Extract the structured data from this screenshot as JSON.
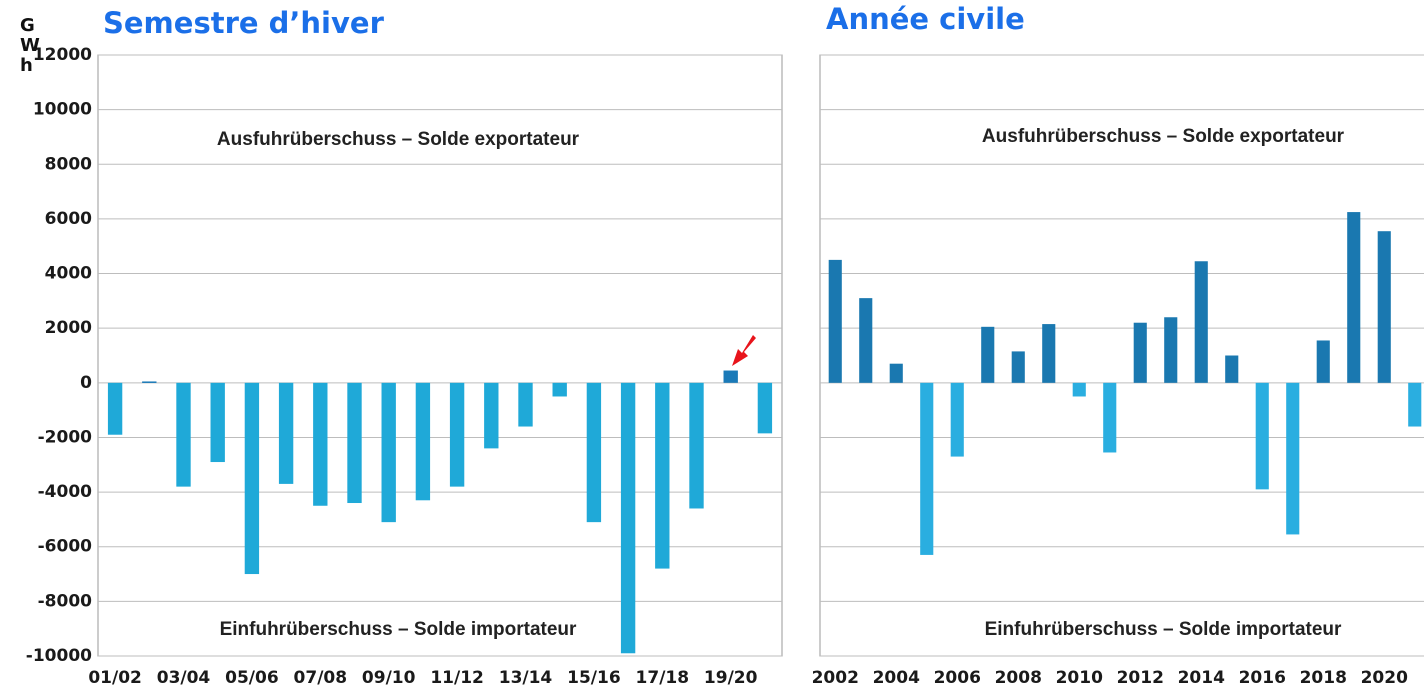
{
  "chart_data": [
    {
      "type": "bar",
      "title": "Semestre d’hiver",
      "y_label": "GWh",
      "annotations": [
        "Ausfuhrüberschuss – Solde exportateur",
        "Einfuhrüberschuss – Solde importateur"
      ],
      "categories": [
        "01/02",
        null,
        "03/04",
        null,
        "05/06",
        null,
        "07/08",
        null,
        "09/10",
        null,
        "11/12",
        null,
        "13/14",
        null,
        "15/16",
        null,
        "17/18",
        null,
        "19/20",
        null
      ],
      "values": [
        -1900,
        50,
        -3800,
        -2900,
        -7000,
        -3700,
        -4500,
        -4400,
        -5100,
        -4300,
        -3800,
        -2400,
        -1600,
        -500,
        -5100,
        -9900,
        -6800,
        -4600,
        450,
        -1850
      ],
      "color": "#1a7ab8",
      "negative_color": "#1fa9d8",
      "ylim": [
        -10000,
        12000
      ],
      "yticks": [
        -10000,
        -8000,
        -6000,
        -4000,
        -2000,
        0,
        2000,
        4000,
        6000,
        8000,
        10000,
        12000
      ],
      "grid": true,
      "tick_labels": true
    },
    {
      "type": "bar",
      "title": "Année civile",
      "annotations": [
        "Ausfuhrüberschuss – Solde exportateur",
        "Einfuhrüberschuss – Solde importateur"
      ],
      "categories": [
        "2002",
        null,
        "2004",
        null,
        "2006",
        null,
        "2008",
        null,
        "2010",
        null,
        "2012",
        null,
        "2014",
        null,
        "2016",
        null,
        "2018",
        null,
        "2020",
        null
      ],
      "values": [
        4500,
        3100,
        700,
        -6300,
        -2700,
        2050,
        1150,
        2150,
        -500,
        -2550,
        2200,
        2400,
        4450,
        1000,
        -3900,
        -5550,
        1550,
        6250,
        5550,
        -1600
      ],
      "color": "#1a78b0",
      "negative_color": "#2aaee0",
      "ylim": [
        -10000,
        12000
      ],
      "yticks": [
        -10000,
        -8000,
        -6000,
        -4000,
        -2000,
        0,
        2000,
        4000,
        6000,
        8000,
        10000,
        12000
      ],
      "grid": true,
      "tick_labels": false
    }
  ]
}
